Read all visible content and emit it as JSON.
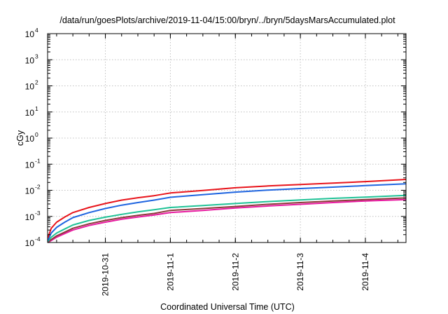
{
  "chart_data": {
    "type": "line",
    "title": "/data/run/goesPlots/archive/2019-11-04/15:00/bryn/../bryn/5daysMarsAccumulated.plot",
    "xlabel": "Coordinated Universal Time (UTC)",
    "ylabel": "cGy",
    "y_scale": "log",
    "ylim": [
      0.0001,
      10000
    ],
    "xlim": [
      "2019-10-30 02:40",
      "2019-11-04 15:00"
    ],
    "x_ticks": [
      "2019-10-31",
      "2019-11-1",
      "2019-11-2",
      "2019-11-3",
      "2019-11-4"
    ],
    "x_tick_values": [
      "2019-10-31 00:00",
      "2019-11-01 00:00",
      "2019-11-02 00:00",
      "2019-11-03 00:00",
      "2019-11-04 00:00"
    ],
    "y_ticks": [
      {
        "base": "10",
        "exp": "4"
      },
      {
        "base": "10",
        "exp": "3"
      },
      {
        "base": "10",
        "exp": "2"
      },
      {
        "base": "10",
        "exp": "1"
      },
      {
        "base": "10",
        "exp": "0"
      },
      {
        "base": "10",
        "exp": "-1"
      },
      {
        "base": "10",
        "exp": "-2"
      },
      {
        "base": "10",
        "exp": "-3"
      },
      {
        "base": "10",
        "exp": "-4"
      }
    ],
    "grid": true,
    "x": [
      "2019-10-30 02:45",
      "2019-10-30 04:00",
      "2019-10-30 06:00",
      "2019-10-30 09:00",
      "2019-10-30 12:00",
      "2019-10-30 18:00",
      "2019-10-31 00:00",
      "2019-10-31 06:00",
      "2019-10-31 12:00",
      "2019-10-31 18:00",
      "2019-11-01 00:00",
      "2019-11-01 12:00",
      "2019-11-02 00:00",
      "2019-11-02 12:00",
      "2019-11-03 00:00",
      "2019-11-03 12:00",
      "2019-11-04 00:00",
      "2019-11-04 15:00"
    ],
    "series": [
      {
        "color": "#e8141b",
        "values": [
          0.00015,
          0.00035,
          0.0006,
          0.00095,
          0.0014,
          0.0022,
          0.0031,
          0.0042,
          0.0052,
          0.0062,
          0.0079,
          0.0098,
          0.0125,
          0.0147,
          0.0166,
          0.0188,
          0.0215,
          0.026
        ]
      },
      {
        "color": "#1f65e0",
        "values": [
          0.00012,
          0.00023,
          0.00038,
          0.0006,
          0.0009,
          0.0014,
          0.002,
          0.0027,
          0.0034,
          0.0042,
          0.0054,
          0.0068,
          0.0085,
          0.0102,
          0.0117,
          0.0132,
          0.0151,
          0.0178
        ]
      },
      {
        "color": "#1fc296",
        "values": [
          0.00011,
          0.00016,
          0.00023,
          0.00033,
          0.00047,
          0.0007,
          0.00093,
          0.0012,
          0.0015,
          0.0018,
          0.0022,
          0.0026,
          0.0031,
          0.0037,
          0.0043,
          0.0049,
          0.0055,
          0.0064
        ]
      },
      {
        "color": "#8c3a3a",
        "values": [
          0.000105,
          0.00013,
          0.00018,
          0.00025,
          0.00035,
          0.00052,
          0.0007,
          0.0009,
          0.0011,
          0.0013,
          0.0017,
          0.002,
          0.0024,
          0.0029,
          0.0034,
          0.0039,
          0.0044,
          0.0051
        ]
      },
      {
        "color": "#e81aa0",
        "values": [
          0.0001,
          0.00012,
          0.00016,
          0.00022,
          0.0003,
          0.00045,
          0.0006,
          0.00078,
          0.00095,
          0.00113,
          0.0014,
          0.0017,
          0.0021,
          0.0025,
          0.0029,
          0.0034,
          0.0039,
          0.0044
        ]
      }
    ]
  }
}
